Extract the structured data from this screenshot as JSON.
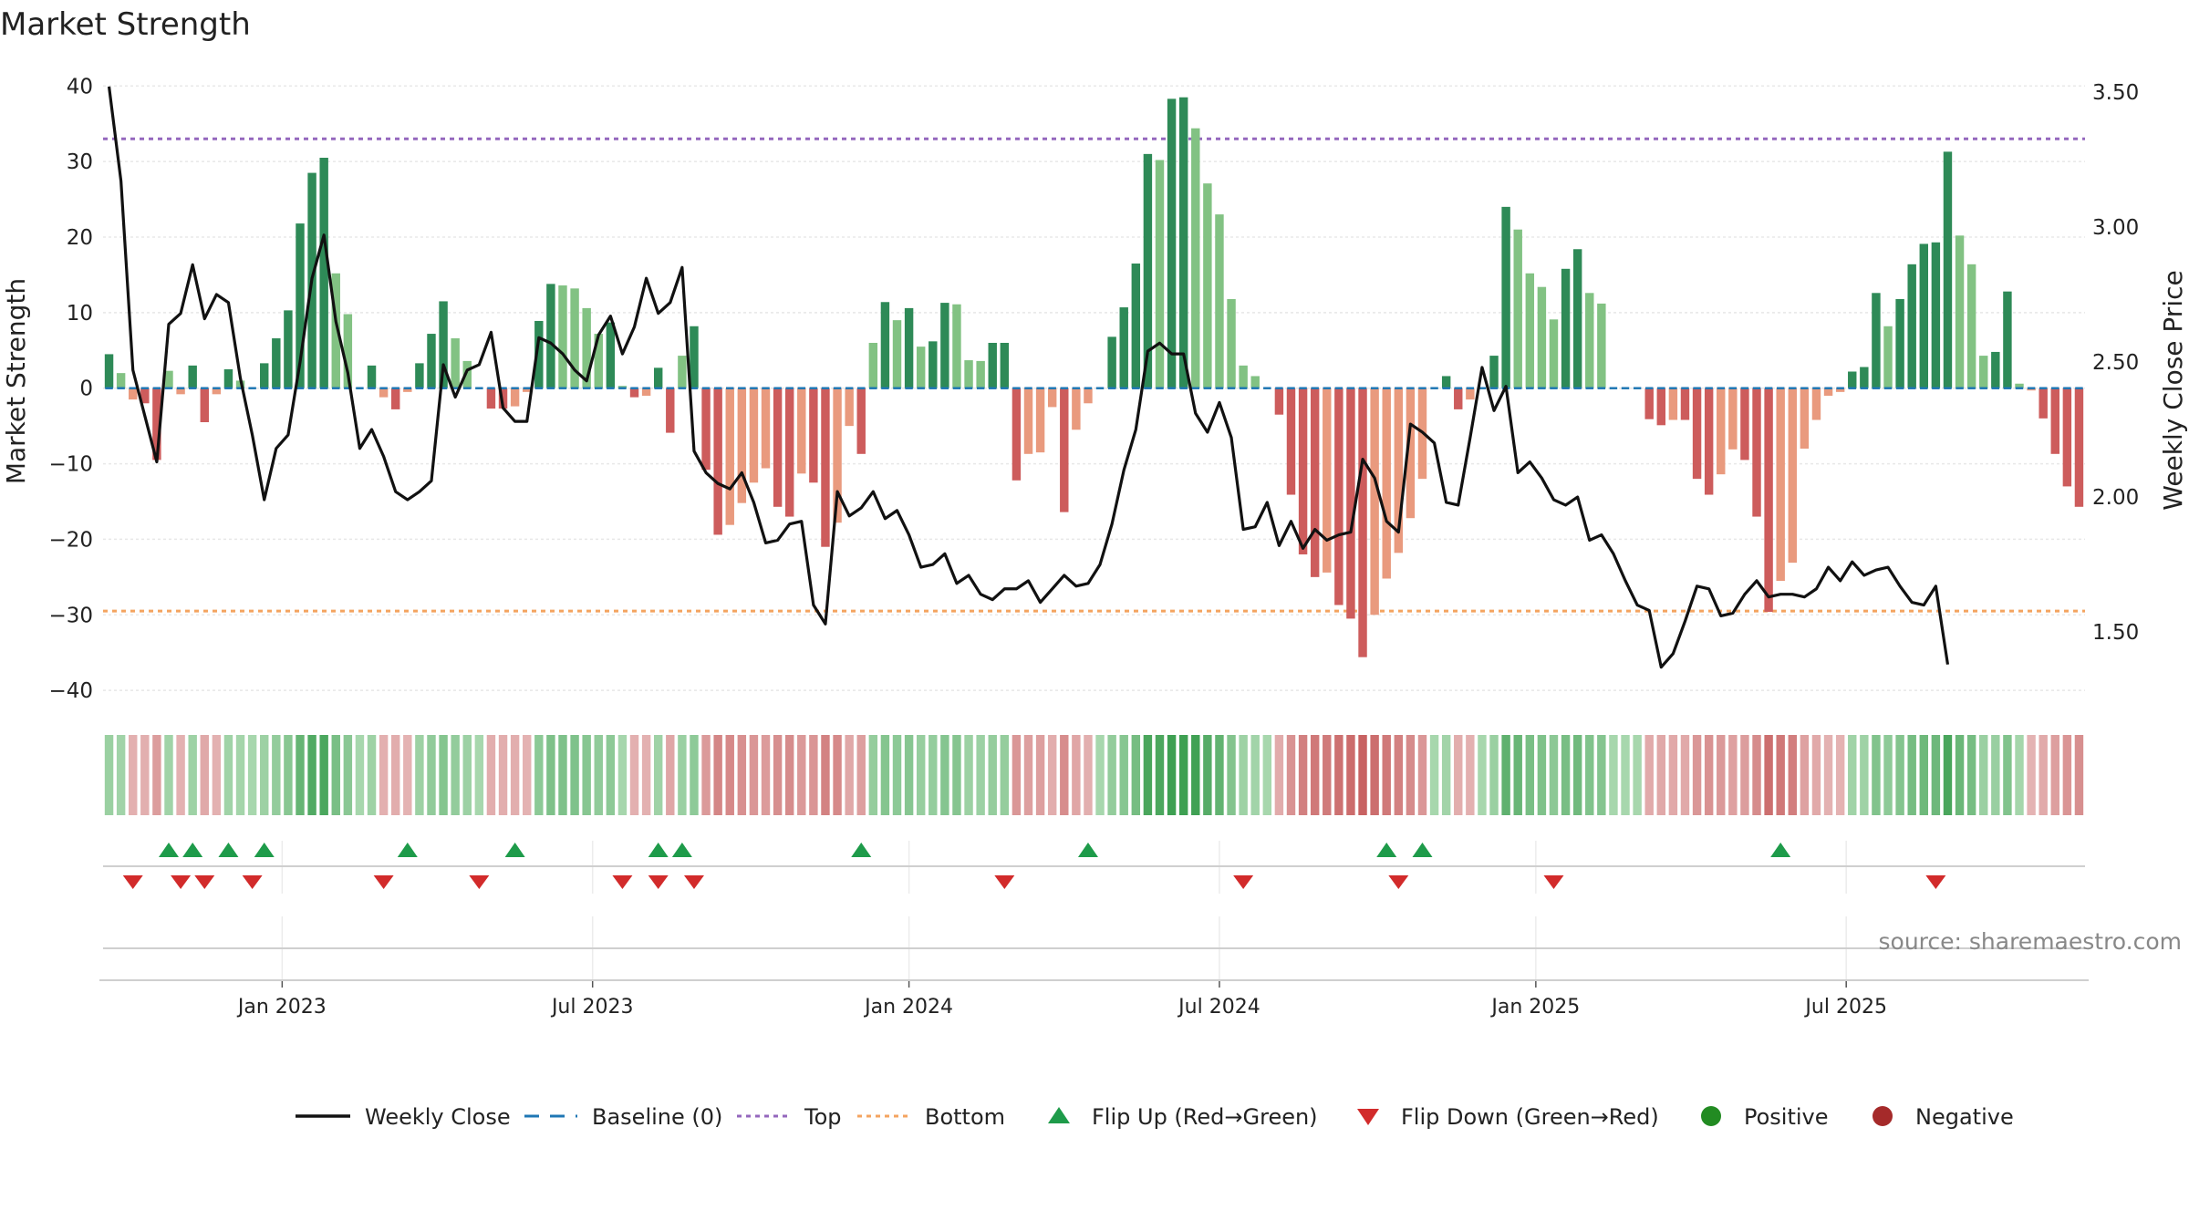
{
  "chart_data": {
    "type": "bar",
    "title": "Market Strength",
    "ylabel": "Market Strength",
    "y2label": "Weekly Close Price",
    "ylim": [
      -43,
      41
    ],
    "y2lim": [
      1.2,
      3.55
    ],
    "yticks": [
      40,
      30,
      20,
      10,
      0,
      -10,
      -20,
      -30,
      -40
    ],
    "ytick_labels": [
      "40",
      "30",
      "20",
      "10",
      "0",
      "−10",
      "−20",
      "−30",
      "−40"
    ],
    "y2ticks": [
      3.5,
      3.0,
      2.5,
      2.0,
      1.5
    ],
    "y2tick_labels": [
      "3.50",
      "3.00",
      "2.50",
      "2.00",
      "1.50"
    ],
    "xticks": [
      {
        "index": 14.5,
        "label": "Jan 2023"
      },
      {
        "index": 40.5,
        "label": "Jul 2023"
      },
      {
        "index": 67,
        "label": "Jan 2024"
      },
      {
        "index": 93,
        "label": "Jul 2024"
      },
      {
        "index": 119.5,
        "label": "Jan 2025"
      },
      {
        "index": 145.5,
        "label": "Jul 2025"
      }
    ],
    "top_level": 33,
    "bottom_level": -29.5,
    "strength": [
      4.5,
      2,
      -1.5,
      -2,
      -9.5,
      2.3,
      -0.8,
      3,
      -4.5,
      -0.8,
      2.5,
      1,
      0,
      3.3,
      6.6,
      10.3,
      21.8,
      28.5,
      30.5,
      15.2,
      9.8,
      0,
      3,
      -1.2,
      -2.8,
      -0.5,
      3.3,
      7.2,
      11.5,
      6.6,
      3.6,
      0,
      -2.7,
      -2.7,
      -2.4,
      -0.5,
      8.9,
      13.8,
      13.6,
      13.2,
      10.6,
      7.2,
      8.7,
      0.3,
      -1.2,
      -1,
      2.7,
      -5.9,
      4.3,
      8.2,
      -10.8,
      -19.4,
      -18.1,
      -15.2,
      -12.5,
      -10.6,
      -15.7,
      -17,
      -11.3,
      -12.5,
      -21,
      -17.8,
      -5,
      -8.7,
      6,
      11.4,
      9,
      10.6,
      5.5,
      6.2,
      11.3,
      11.1,
      3.7,
      3.6,
      6,
      6,
      -12.2,
      -8.7,
      -8.5,
      -2.5,
      -16.4,
      -5.5,
      -2,
      0,
      6.8,
      10.7,
      16.5,
      31,
      30.2,
      38.3,
      38.5,
      34.4,
      27.1,
      23,
      11.8,
      3,
      1.6,
      0,
      -3.5,
      -14.1,
      -22,
      -25,
      -24.4,
      -28.7,
      -30.5,
      -35.6,
      -30,
      -25.2,
      -21.8,
      -17.2,
      -12,
      0,
      1.6,
      -2.8,
      -1.5,
      0,
      4.3,
      24,
      21,
      15.2,
      13.4,
      9.1,
      15.8,
      18.4,
      12.6,
      11.2,
      0,
      0,
      0,
      -4.1,
      -4.9,
      -4.2,
      -4.2,
      -12,
      -14.1,
      -11.4,
      -8.1,
      -9.5,
      -17,
      -29.6,
      -25.5,
      -23.1,
      -8,
      -4.2,
      -1,
      -0.5,
      2.2,
      2.8,
      12.6,
      8.2,
      11.8,
      16.4,
      19.1,
      19.3,
      31.3,
      20.2,
      16.4,
      4.3,
      4.8,
      12.8,
      0.6,
      -0.3,
      -4,
      -8.7,
      -13,
      -15.7
    ],
    "close": [
      3.52,
      3.17,
      2.47,
      2.3,
      2.13,
      2.64,
      2.68,
      2.86,
      2.66,
      2.75,
      2.72,
      2.44,
      2.23,
      1.99,
      2.18,
      2.23,
      2.5,
      2.81,
      2.97,
      2.65,
      2.46,
      2.18,
      2.25,
      2.15,
      2.02,
      1.99,
      2.02,
      2.06,
      2.49,
      2.37,
      2.47,
      2.49,
      2.61,
      2.33,
      2.28,
      2.28,
      2.59,
      2.57,
      2.53,
      2.47,
      2.43,
      2.6,
      2.67,
      2.53,
      2.63,
      2.81,
      2.68,
      2.72,
      2.85,
      2.17,
      2.09,
      2.05,
      2.03,
      2.09,
      1.98,
      1.83,
      1.84,
      1.9,
      1.91,
      1.6,
      1.53,
      2.02,
      1.93,
      1.96,
      2.02,
      1.92,
      1.95,
      1.86,
      1.74,
      1.75,
      1.79,
      1.68,
      1.71,
      1.64,
      1.62,
      1.66,
      1.66,
      1.69,
      1.61,
      1.66,
      1.71,
      1.67,
      1.68,
      1.75,
      1.9,
      2.1,
      2.25,
      2.54,
      2.57,
      2.53,
      2.53,
      2.31,
      2.24,
      2.35,
      2.22,
      1.88,
      1.89,
      1.98,
      1.82,
      1.91,
      1.81,
      1.88,
      1.84,
      1.86,
      1.87,
      2.14,
      2.07,
      1.91,
      1.87,
      2.27,
      2.24,
      2.2,
      1.98,
      1.97,
      2.22,
      2.48,
      2.32,
      2.41,
      2.09,
      2.13,
      2.07,
      1.99,
      1.97,
      2.0,
      1.84,
      1.86,
      1.79,
      1.69,
      1.6,
      1.58,
      1.37,
      1.42,
      1.54,
      1.67,
      1.66,
      1.56,
      1.57,
      1.64,
      1.69,
      1.63,
      1.64,
      1.64,
      1.63,
      1.66,
      1.74,
      1.69,
      1.76,
      1.71,
      1.73,
      1.74,
      1.67,
      1.61,
      1.6,
      1.67,
      1.38
    ],
    "flip_up_indices": [
      5,
      7,
      10,
      13,
      25,
      34,
      46,
      48,
      63,
      82,
      107,
      110,
      140
    ],
    "flip_down_indices": [
      2,
      6,
      8,
      12,
      23,
      31,
      43,
      46,
      49,
      75,
      95,
      108,
      121,
      153
    ],
    "legend": [
      "Weekly Close",
      "Baseline (0)",
      "Top",
      "Bottom",
      "Flip Up (Red→Green)",
      "Flip Down (Green→Red)",
      "Positive",
      "Negative"
    ],
    "source": "source: sharemaestro.com",
    "colors": {
      "pos_strong": "#2e8a57",
      "pos_light": "#82c283",
      "neg_strong": "#cd5c5c",
      "neg_light": "#e99a7e",
      "baseline": "#1f77b4",
      "top": "#9467bd",
      "bottom": "#f4a460",
      "line": "#111111",
      "flip_up": "#1e9b4a",
      "flip_down": "#d22b2b",
      "positive_dot": "#228b22",
      "negative_dot": "#a52a2a"
    }
  }
}
